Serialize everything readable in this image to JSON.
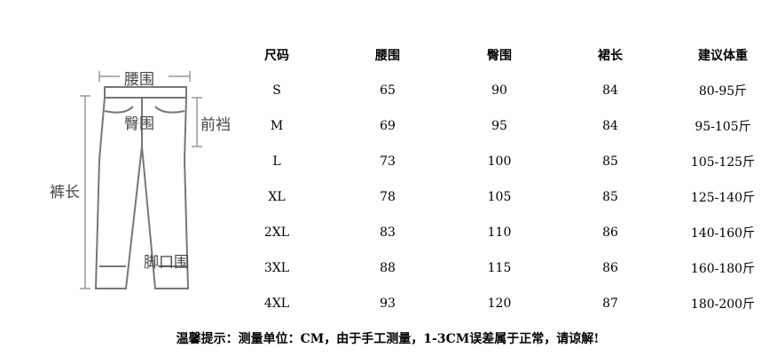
{
  "diagram": {
    "labels": {
      "waist": "腰围",
      "hip": "臀围",
      "front_rise": "前裆",
      "length": "裤长",
      "hem": "脚口围"
    }
  },
  "table": {
    "headers": [
      "尺码",
      "腰围",
      "臀围",
      "裙长",
      "建议体重"
    ],
    "rows": [
      [
        "S",
        "65",
        "90",
        "84",
        "80-95斤"
      ],
      [
        "M",
        "69",
        "95",
        "84",
        "95-105斤"
      ],
      [
        "L",
        "73",
        "100",
        "85",
        "105-125斤"
      ],
      [
        "XL",
        "78",
        "105",
        "85",
        "125-140斤"
      ],
      [
        "2XL",
        "83",
        "110",
        "86",
        "140-160斤"
      ],
      [
        "3XL",
        "88",
        "115",
        "86",
        "160-180斤"
      ],
      [
        "4XL",
        "93",
        "120",
        "87",
        "180-200斤"
      ]
    ]
  },
  "note": "温馨提示：测量单位：CM，由于手工测量，1-3CM误差属于正常，请谅解!"
}
